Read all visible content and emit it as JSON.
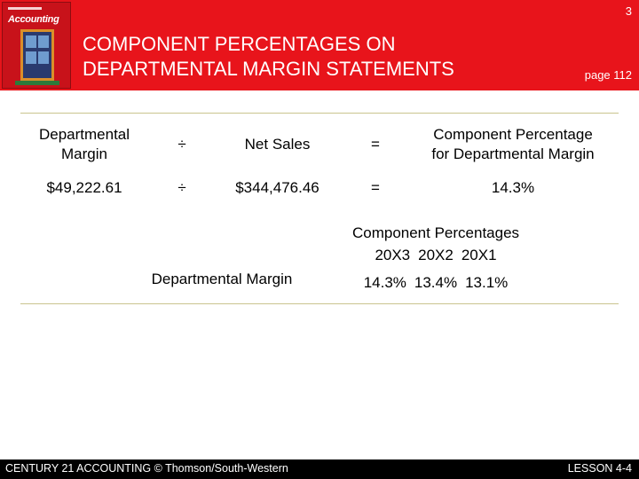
{
  "header": {
    "slide_number": "3",
    "title_line1": "COMPONENT PERCENTAGES ON",
    "title_line2": "DEPARTMENTAL MARGIN STATEMENTS",
    "page_ref": "page 112",
    "accent_color": "#e8141b"
  },
  "cover": {
    "brand": "Accounting"
  },
  "formula": {
    "row1": {
      "term1_line1": "Departmental",
      "term1_line2": "Margin",
      "op1": "÷",
      "term2": "Net Sales",
      "op2": "=",
      "result_line1": "Component Percentage",
      "result_line2": "for Departmental Margin"
    },
    "row2": {
      "term1": "$49,222.61",
      "op1": "÷",
      "term2": "$344,476.46",
      "op2": "=",
      "result": "14.3%"
    }
  },
  "component_percentages": {
    "heading": "Component Percentages",
    "row_label": "Departmental Margin",
    "years": [
      "20X3",
      "20X2",
      "20X1"
    ],
    "values": [
      "14.3%",
      "13.4%",
      "13.1%"
    ]
  },
  "footer": {
    "left": "CENTURY 21 ACCOUNTING © Thomson/South-Western",
    "right": "LESSON  4-4"
  }
}
